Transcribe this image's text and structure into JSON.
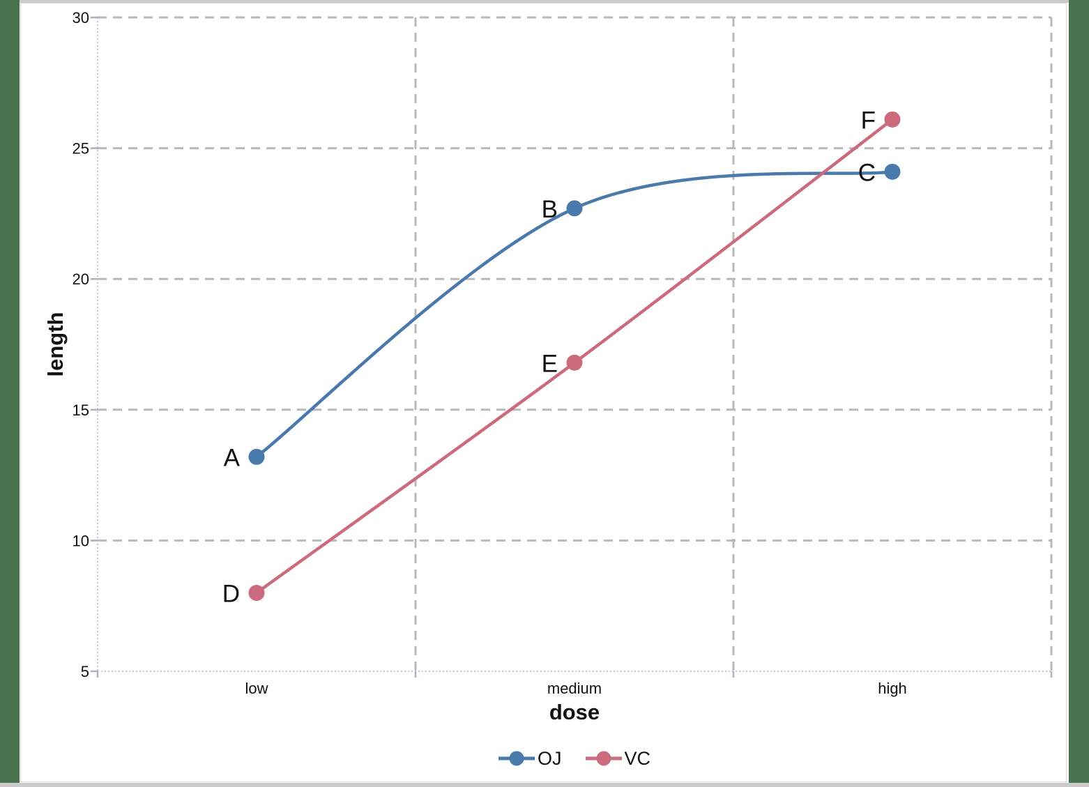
{
  "frame": {
    "side_bar_color": "#49724f",
    "strip_color": "#cbcbcb",
    "canvas_color": "#ffffff"
  },
  "chart_data": {
    "type": "line",
    "categories": [
      "low",
      "medium",
      "high"
    ],
    "series": [
      {
        "name": "OJ",
        "color": "#4a79ab",
        "values": [
          13.2,
          22.7,
          24.1
        ],
        "point_labels": [
          "A",
          "B",
          "C"
        ]
      },
      {
        "name": "VC",
        "color": "#cb6b7d",
        "values": [
          8.0,
          16.8,
          26.1
        ],
        "point_labels": [
          "D",
          "E",
          "F"
        ]
      }
    ],
    "title": "",
    "xlabel": "dose",
    "ylabel": "length",
    "ylim": [
      5,
      30
    ],
    "yticks": [
      5,
      10,
      15,
      20,
      25,
      30
    ],
    "grid": "dashed",
    "legend_position": "bottom",
    "colors": {
      "gridline": "#b9b9b9",
      "axis_line": "#c3c7cc",
      "tick_mark": "#a8b2be",
      "text": "#111111"
    }
  }
}
